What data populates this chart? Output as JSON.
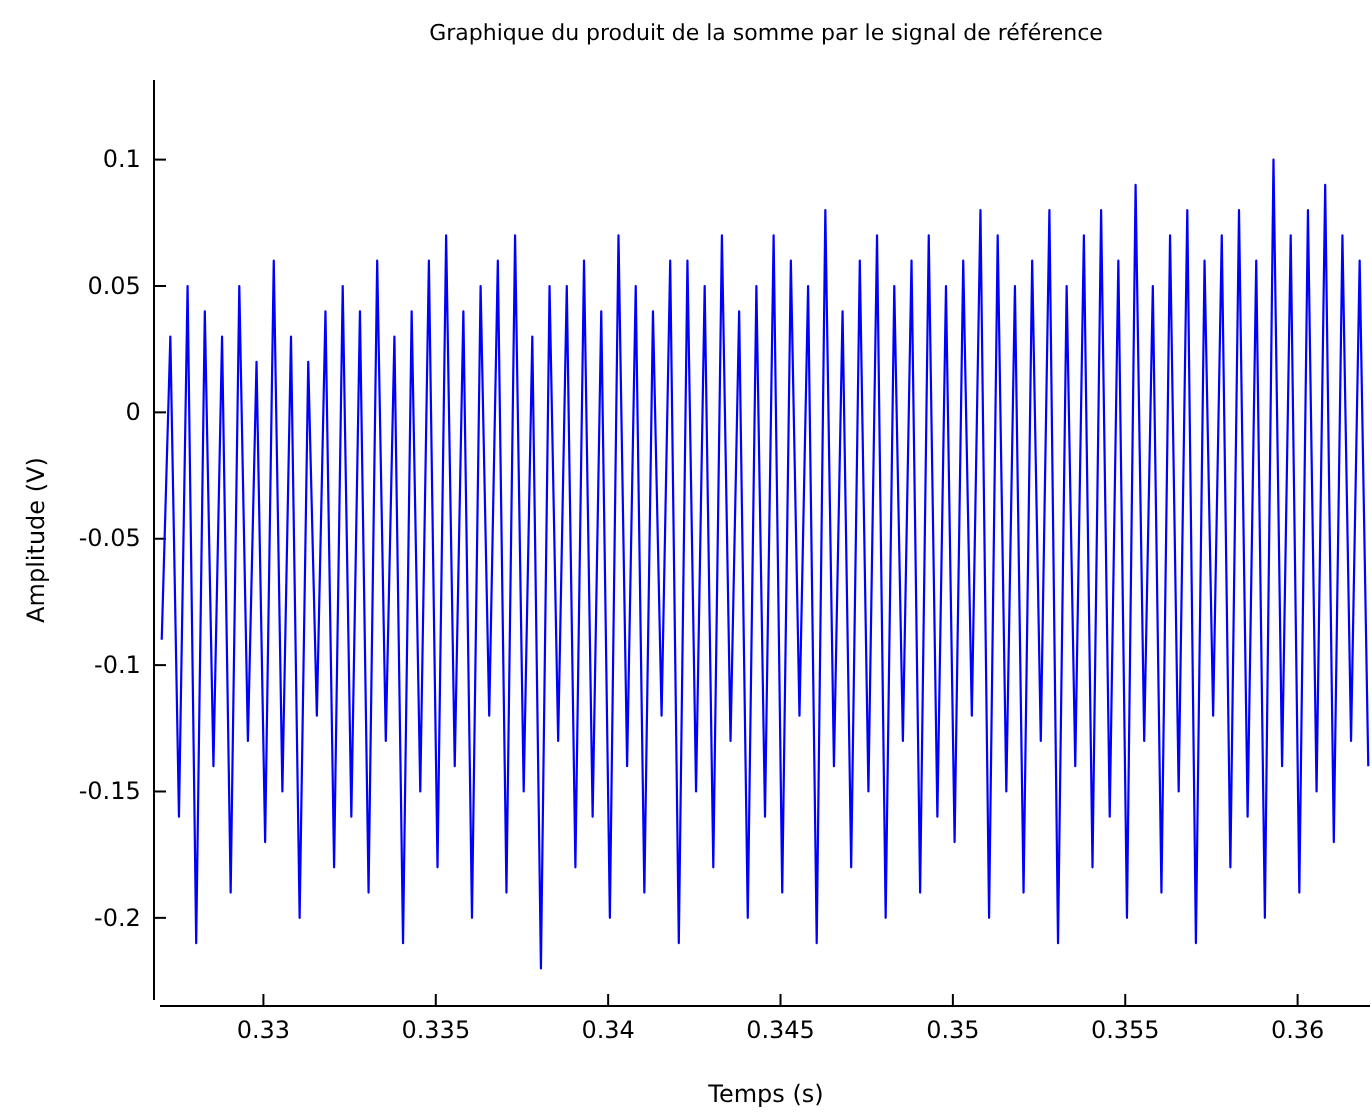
{
  "chart_data": {
    "type": "line",
    "title": "Graphique du produit de la somme par le signal de référence",
    "xlabel": "Temps (s)",
    "ylabel": "Amplitude (V)",
    "xlim": [
      0.327,
      0.3621
    ],
    "ylim": [
      -0.2325,
      0.1315
    ],
    "xticks": [
      0.33,
      0.335,
      0.34,
      0.345,
      0.35,
      0.355,
      0.36
    ],
    "yticks": [
      -0.2,
      -0.15,
      -0.1,
      -0.05,
      0,
      0.05,
      0.1
    ],
    "marker": "none",
    "line_style": "solid",
    "series": [
      {
        "color": "#0000ff",
        "x": [
          0.32705,
          0.3273,
          0.32755,
          0.3278,
          0.32805,
          0.3283,
          0.32855,
          0.3288,
          0.32905,
          0.3293,
          0.32955,
          0.3298,
          0.33005,
          0.3303,
          0.33055,
          0.3308,
          0.33105,
          0.3313,
          0.33155,
          0.3318,
          0.33205,
          0.3323,
          0.33255,
          0.3328,
          0.33305,
          0.3333,
          0.33355,
          0.3338,
          0.33405,
          0.3343,
          0.33455,
          0.3348,
          0.33505,
          0.3353,
          0.33555,
          0.3358,
          0.33605,
          0.3363,
          0.33655,
          0.3368,
          0.33705,
          0.3373,
          0.33755,
          0.3378,
          0.33805,
          0.3383,
          0.33855,
          0.3388,
          0.33905,
          0.3393,
          0.33955,
          0.3398,
          0.34005,
          0.3403,
          0.34055,
          0.3408,
          0.34105,
          0.3413,
          0.34155,
          0.3418,
          0.34205,
          0.3423,
          0.34255,
          0.3428,
          0.34305,
          0.3433,
          0.34355,
          0.3438,
          0.34405,
          0.3443,
          0.34455,
          0.3448,
          0.34505,
          0.3453,
          0.34555,
          0.3458,
          0.34605,
          0.3463,
          0.34655,
          0.3468,
          0.34705,
          0.3473,
          0.34755,
          0.3478,
          0.34805,
          0.3483,
          0.34855,
          0.3488,
          0.34905,
          0.3493,
          0.34955,
          0.3498,
          0.35005,
          0.3503,
          0.35055,
          0.3508,
          0.35105,
          0.3513,
          0.35155,
          0.3518,
          0.35205,
          0.3523,
          0.35255,
          0.3528,
          0.35305,
          0.3533,
          0.35355,
          0.3538,
          0.35405,
          0.3543,
          0.35455,
          0.3548,
          0.35505,
          0.3553,
          0.35555,
          0.3558,
          0.35605,
          0.3563,
          0.35655,
          0.3568,
          0.35705,
          0.3573,
          0.35755,
          0.3578,
          0.35805,
          0.3583,
          0.35855,
          0.3588,
          0.35905,
          0.3593,
          0.35955,
          0.3598,
          0.36005,
          0.3603,
          0.36055,
          0.3608,
          0.36105,
          0.3613,
          0.36155,
          0.3618,
          0.36205
        ],
        "values": [
          -0.09,
          0.03,
          -0.16,
          0.05,
          -0.21,
          0.04,
          -0.14,
          0.03,
          -0.19,
          0.05,
          -0.13,
          0.02,
          -0.17,
          0.06,
          -0.15,
          0.03,
          -0.2,
          0.02,
          -0.12,
          0.04,
          -0.18,
          0.05,
          -0.16,
          0.04,
          -0.19,
          0.06,
          -0.13,
          0.03,
          -0.21,
          0.04,
          -0.15,
          0.06,
          -0.18,
          0.07,
          -0.14,
          0.04,
          -0.2,
          0.05,
          -0.12,
          0.06,
          -0.19,
          0.07,
          -0.15,
          0.03,
          -0.22,
          0.05,
          -0.13,
          0.05,
          -0.18,
          0.06,
          -0.16,
          0.04,
          -0.2,
          0.07,
          -0.14,
          0.05,
          -0.19,
          0.04,
          -0.12,
          0.06,
          -0.21,
          0.06,
          -0.15,
          0.05,
          -0.18,
          0.07,
          -0.13,
          0.04,
          -0.2,
          0.05,
          -0.16,
          0.07,
          -0.19,
          0.06,
          -0.12,
          0.05,
          -0.21,
          0.08,
          -0.14,
          0.04,
          -0.18,
          0.06,
          -0.15,
          0.07,
          -0.2,
          0.05,
          -0.13,
          0.06,
          -0.19,
          0.07,
          -0.16,
          0.05,
          -0.17,
          0.06,
          -0.12,
          0.08,
          -0.2,
          0.07,
          -0.15,
          0.05,
          -0.19,
          0.06,
          -0.13,
          0.08,
          -0.21,
          0.05,
          -0.14,
          0.07,
          -0.18,
          0.08,
          -0.16,
          0.06,
          -0.2,
          0.09,
          -0.13,
          0.05,
          -0.19,
          0.07,
          -0.15,
          0.08,
          -0.21,
          0.06,
          -0.12,
          0.07,
          -0.18,
          0.08,
          -0.16,
          0.06,
          -0.2,
          0.1,
          -0.14,
          0.07,
          -0.19,
          0.08,
          -0.15,
          0.09,
          -0.17,
          0.07,
          -0.13,
          0.06,
          -0.14
        ]
      }
    ]
  }
}
